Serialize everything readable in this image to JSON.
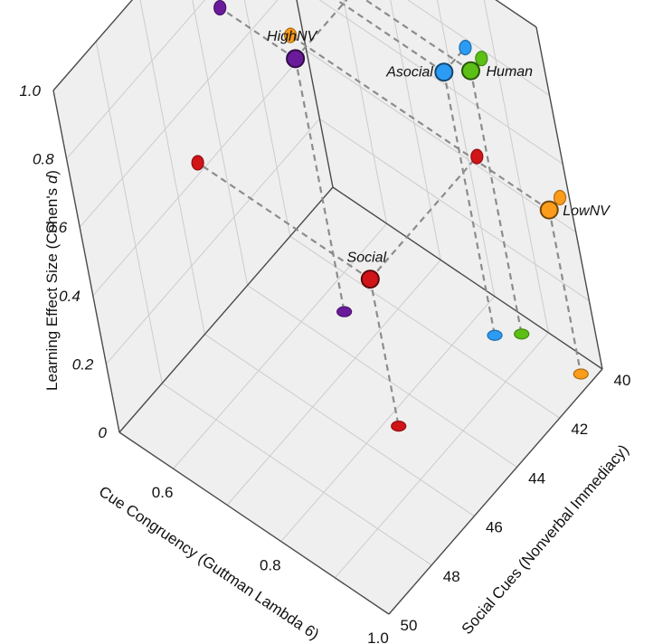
{
  "chart_data": {
    "type": "scatter",
    "subtype": "3d-scatter-with-projections",
    "xlabel": "Cue Congruency (Guttman Lambda 6)",
    "ylabel": "Social Cues (Nonverbal Immediacy)",
    "zlabel_parts": [
      "Learning Effect Size (Cohen's ",
      "d",
      ")"
    ],
    "xlim": [
      0.5,
      1.0
    ],
    "ylim": [
      40,
      50
    ],
    "zlim": [
      0,
      1.0
    ],
    "xticks": [
      "0.6",
      "0.8",
      "1.0"
    ],
    "yticks": [
      "40",
      "42",
      "44",
      "46",
      "48",
      "50"
    ],
    "zticks": [
      "0",
      "0.2",
      "0.4",
      "0.6",
      "0.8",
      "1.0"
    ],
    "grid": true,
    "points": [
      {
        "name": "Asocial",
        "x": 0.84,
        "y": 41.0,
        "z": 0.77,
        "color": "#2b9bf4"
      },
      {
        "name": "Human",
        "x": 0.87,
        "y": 40.5,
        "z": 0.77,
        "color": "#5cbf16"
      },
      {
        "name": "HighNV",
        "x": 0.64,
        "y": 43.0,
        "z": 0.74,
        "color": "#6a1b9a"
      },
      {
        "name": "Social",
        "x": 0.82,
        "y": 45.0,
        "z": 0.43,
        "color": "#d01418"
      },
      {
        "name": "LowNV",
        "x": 0.98,
        "y": 40.5,
        "z": 0.48,
        "color": "#fb9c1b"
      }
    ]
  },
  "colors": {
    "pane": "#efefef",
    "pane_edge": "#4a4a4a",
    "grid": "#cccccc",
    "projection_line": "#8c8c8c"
  }
}
